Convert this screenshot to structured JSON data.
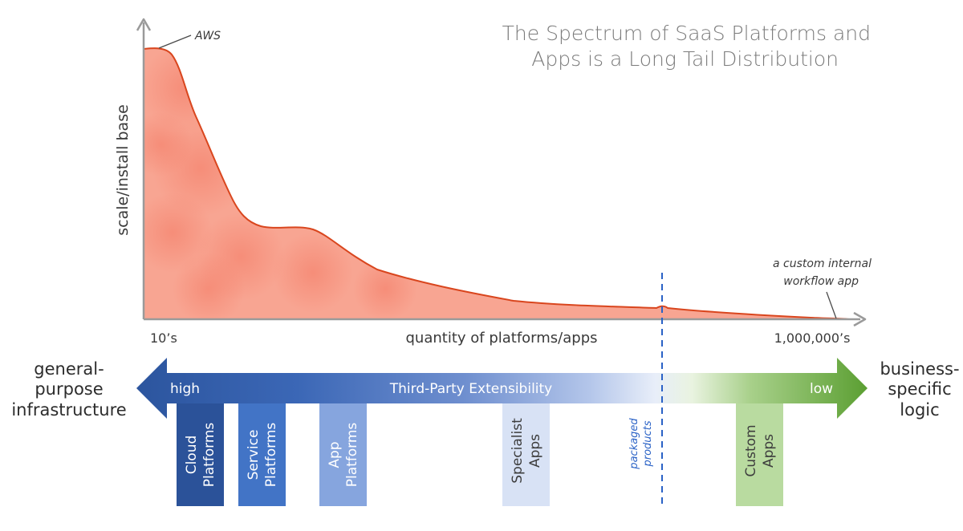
{
  "title": {
    "line1": "The Spectrum of SaaS Platforms and",
    "line2": "Apps is a Long Tail Distribution"
  },
  "chart_data": {
    "type": "area",
    "ylabel": "scale/install base",
    "xlabel": "quantity of platforms/apps",
    "x_tick_left": "10’s",
    "x_tick_right": "1,000,000’s",
    "annotations": [
      {
        "id": "aws",
        "text": "AWS"
      },
      {
        "id": "custom",
        "lines": [
          "a custom internal",
          "workflow app"
        ]
      }
    ],
    "shape": "long-tail curve, high at left falling to near zero at right",
    "fill_color": "#f7917a",
    "line_color": "#d9461e",
    "divider_label_lines": [
      "packaged",
      "products"
    ],
    "divider_color": "#2a62c6"
  },
  "spectrum": {
    "left_label": [
      "general-",
      "purpose",
      "infrastructure"
    ],
    "right_label": [
      "business-",
      "specific",
      "logic"
    ],
    "arrow_label": "Third-Party Extensibility",
    "high_label": "high",
    "low_label": "low",
    "colors": {
      "blue": "#2e5aa6",
      "green": "#6aaa3c"
    }
  },
  "columns": [
    {
      "lines": [
        "Cloud",
        "Platforms"
      ],
      "fill": "#2b5299",
      "text_color": "#ffffff"
    },
    {
      "lines": [
        "Service",
        "Platforms"
      ],
      "fill": "#4274c6",
      "text_color": "#ffffff"
    },
    {
      "lines": [
        "App",
        "Platforms"
      ],
      "fill": "#86a5de",
      "text_color": "#ffffff"
    },
    {
      "lines": [
        "Specialist",
        "Apps"
      ],
      "fill": "#d8e2f5",
      "text_color": "#3d3d3d"
    },
    {
      "lines": [
        "Custom",
        "Apps"
      ],
      "fill": "#b9dba0",
      "text_color": "#3d3d3d"
    }
  ]
}
